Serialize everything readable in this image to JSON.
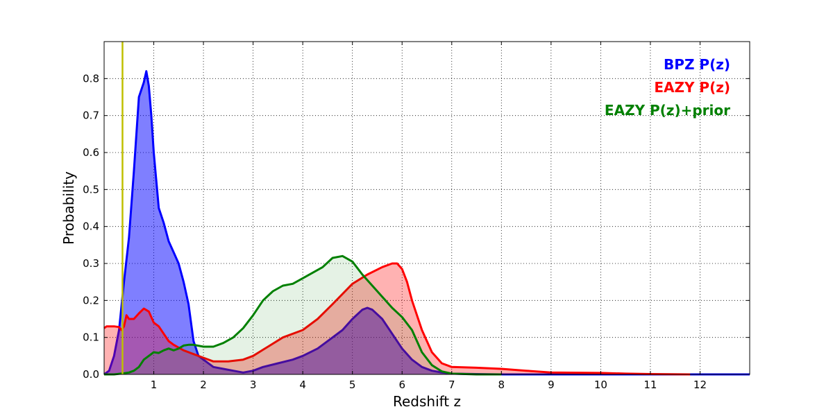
{
  "chart_data": {
    "type": "area",
    "xlabel": "Redshift z",
    "ylabel": "Probability",
    "xlim": [
      0,
      13
    ],
    "ylim": [
      0,
      0.9
    ],
    "x_ticks": [
      1,
      2,
      3,
      4,
      5,
      6,
      7,
      8,
      9,
      10,
      11,
      12
    ],
    "y_ticks": [
      0.0,
      0.1,
      0.2,
      0.3,
      0.4,
      0.5,
      0.6,
      0.7,
      0.8
    ],
    "y_tick_labels": [
      "0.0",
      "0.1",
      "0.2",
      "0.3",
      "0.4",
      "0.5",
      "0.6",
      "0.7",
      "0.8"
    ],
    "grid": true,
    "legend_position": "top-right",
    "vertical_line": {
      "x": 0.37,
      "color": "#bfbf00"
    },
    "series": [
      {
        "name": "BPZ P(z)",
        "color": "#0000ff",
        "fill": "#0000ff",
        "fill_opacity": 0.5,
        "x": [
          0,
          0.1,
          0.2,
          0.3,
          0.4,
          0.5,
          0.6,
          0.7,
          0.8,
          0.85,
          0.9,
          0.95,
          1.0,
          1.1,
          1.2,
          1.3,
          1.4,
          1.5,
          1.6,
          1.7,
          1.8,
          1.9,
          2.0,
          2.2,
          2.4,
          2.6,
          2.8,
          3.0,
          3.2,
          3.5,
          3.8,
          4.0,
          4.3,
          4.6,
          4.8,
          5.0,
          5.2,
          5.3,
          5.4,
          5.6,
          5.8,
          6.0,
          6.2,
          6.4,
          6.6,
          6.8,
          7.0,
          7.5,
          8,
          9,
          10,
          11,
          12,
          13
        ],
        "values": [
          0.0,
          0.01,
          0.05,
          0.12,
          0.25,
          0.37,
          0.55,
          0.75,
          0.79,
          0.82,
          0.78,
          0.7,
          0.6,
          0.45,
          0.41,
          0.36,
          0.33,
          0.3,
          0.25,
          0.19,
          0.09,
          0.05,
          0.04,
          0.02,
          0.015,
          0.01,
          0.005,
          0.01,
          0.02,
          0.03,
          0.04,
          0.05,
          0.07,
          0.1,
          0.12,
          0.15,
          0.175,
          0.18,
          0.175,
          0.15,
          0.11,
          0.07,
          0.04,
          0.02,
          0.01,
          0.005,
          0.002,
          0.001,
          0.0,
          0.0,
          0.0,
          0.0,
          0.0,
          0.0
        ]
      },
      {
        "name": "EAZY P(z)",
        "color": "#ff0000",
        "fill": "#ff0000",
        "fill_opacity": 0.3,
        "x": [
          0,
          0.05,
          0.1,
          0.2,
          0.3,
          0.35,
          0.4,
          0.45,
          0.5,
          0.6,
          0.7,
          0.8,
          0.9,
          1.0,
          1.1,
          1.2,
          1.3,
          1.4,
          1.6,
          1.8,
          2.0,
          2.2,
          2.5,
          2.8,
          3.0,
          3.3,
          3.6,
          4.0,
          4.3,
          4.6,
          5.0,
          5.3,
          5.6,
          5.8,
          5.9,
          6.0,
          6.1,
          6.2,
          6.4,
          6.6,
          6.8,
          7.0,
          7.5,
          8.0,
          8.5,
          9.0,
          10.0,
          10.5,
          11.0,
          11.8
        ],
        "values": [
          0.125,
          0.13,
          0.13,
          0.13,
          0.128,
          0.12,
          0.13,
          0.16,
          0.15,
          0.15,
          0.165,
          0.178,
          0.17,
          0.14,
          0.13,
          0.11,
          0.09,
          0.08,
          0.065,
          0.055,
          0.045,
          0.035,
          0.035,
          0.04,
          0.05,
          0.075,
          0.1,
          0.12,
          0.15,
          0.19,
          0.245,
          0.27,
          0.29,
          0.3,
          0.3,
          0.285,
          0.25,
          0.2,
          0.12,
          0.06,
          0.03,
          0.02,
          0.018,
          0.015,
          0.01,
          0.005,
          0.004,
          0.002,
          0.001,
          0.0
        ]
      },
      {
        "name": "EAZY P(z)+prior",
        "color": "#008000",
        "fill": "#008000",
        "fill_opacity": 0.1,
        "x": [
          0,
          0.2,
          0.4,
          0.5,
          0.6,
          0.7,
          0.8,
          0.9,
          1.0,
          1.1,
          1.2,
          1.3,
          1.4,
          1.5,
          1.6,
          1.7,
          1.8,
          2.0,
          2.2,
          2.4,
          2.6,
          2.8,
          3.0,
          3.2,
          3.4,
          3.6,
          3.8,
          4.0,
          4.2,
          4.4,
          4.6,
          4.8,
          5.0,
          5.2,
          5.4,
          5.6,
          5.8,
          6.0,
          6.2,
          6.4,
          6.6,
          6.8,
          7.0,
          7.5,
          8.0
        ],
        "values": [
          0.0,
          0.0,
          0.003,
          0.005,
          0.01,
          0.02,
          0.04,
          0.05,
          0.06,
          0.058,
          0.065,
          0.07,
          0.065,
          0.07,
          0.078,
          0.08,
          0.08,
          0.075,
          0.075,
          0.085,
          0.1,
          0.125,
          0.16,
          0.2,
          0.225,
          0.24,
          0.245,
          0.26,
          0.275,
          0.29,
          0.315,
          0.32,
          0.305,
          0.27,
          0.24,
          0.21,
          0.18,
          0.155,
          0.12,
          0.06,
          0.025,
          0.008,
          0.002,
          0.0,
          0.0
        ]
      }
    ]
  }
}
